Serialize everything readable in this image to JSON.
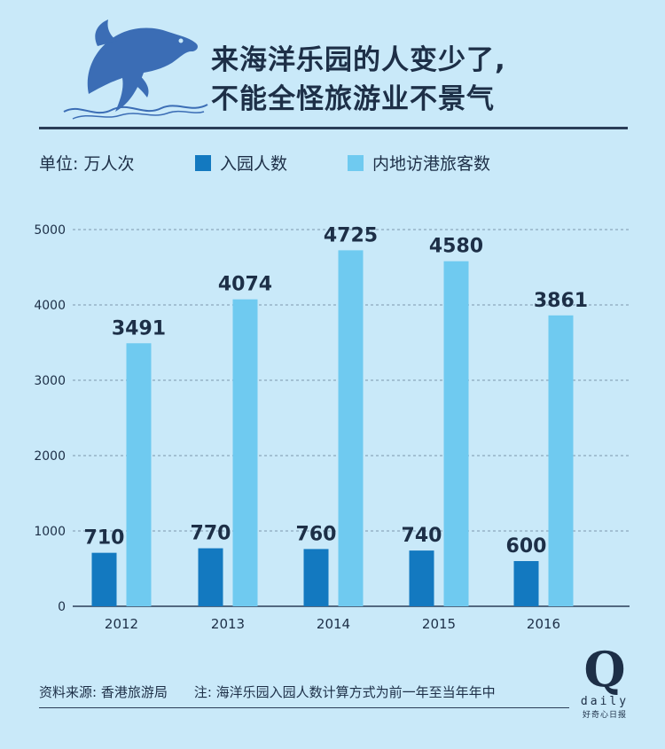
{
  "header": {
    "title_line1": "来海洋乐园的人变少了,",
    "title_line2": "不能全怪旅游业不景气",
    "logo_icon": "dolphin-icon"
  },
  "legend": {
    "unit_label": "单位: 万人次",
    "items": [
      {
        "label": "入园人数",
        "color": "#1379c0"
      },
      {
        "label": "内地访港旅客数",
        "color": "#6fcaf0"
      }
    ]
  },
  "chart_data": {
    "type": "bar",
    "categories": [
      "2012",
      "2013",
      "2014",
      "2015",
      "2016"
    ],
    "series": [
      {
        "name": "入园人数",
        "values": [
          710,
          770,
          760,
          740,
          600
        ],
        "color": "#1379c0"
      },
      {
        "name": "内地访港旅客数",
        "values": [
          3491,
          4074,
          4725,
          4580,
          3861
        ],
        "color": "#6fcaf0"
      }
    ],
    "ylim": [
      0,
      5000
    ],
    "yticks": [
      0,
      1000,
      2000,
      3000,
      4000,
      5000
    ],
    "grid": true,
    "legend": "top"
  },
  "footer": {
    "source": "资料来源: 香港旅游局",
    "note": "注: 海洋乐园入园人数计算方式为前一年至当年年中",
    "brand_q": "Q",
    "brand_daily": "daily",
    "brand_sub": "好奇心日报"
  }
}
